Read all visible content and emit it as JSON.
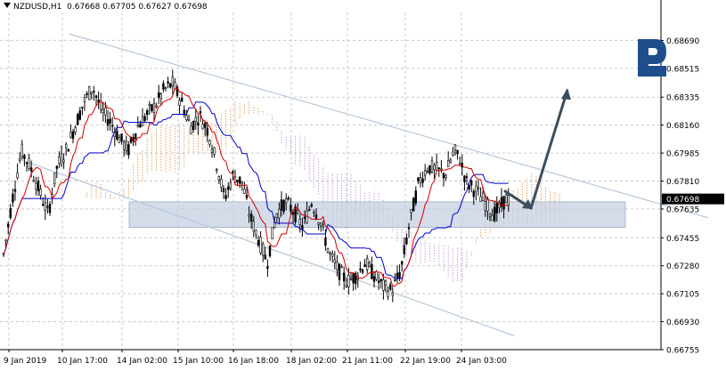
{
  "header": {
    "symbol": "NZDUSD,H1",
    "open": "0.67668",
    "high": "0.67705",
    "low": "0.67627",
    "close": "0.67698"
  },
  "brand": {
    "name": "RoboForex",
    "color": "#1f4e8c"
  },
  "colors": {
    "candle": "#000000",
    "tenkan": "#d40000",
    "kijun": "#0000c8",
    "cloud_bull": "#e8a060",
    "cloud_bear": "#c8a0d8",
    "channel": "#b8c8dc",
    "support_zone": "#c4d0e0",
    "arrow": "#3c4e5c",
    "grid": "#c8c8c8",
    "price_tag_bg": "#000000",
    "price_tag_fg": "#ffffff"
  },
  "current_price": "0.67698",
  "chart_data": {
    "type": "candlestick",
    "indicator": "Ichimoku",
    "ylim": [
      0.66755,
      0.68865
    ],
    "y_ticks": [
      "0.68690",
      "0.68515",
      "0.68335",
      "0.68160",
      "0.67985",
      "0.67810",
      "0.67635",
      "0.67455",
      "0.67280",
      "0.67105",
      "0.66930",
      "0.66755"
    ],
    "x_ticks": [
      "9 Jan 2019",
      "10 Jan 17:00",
      "14 Jan 02:00",
      "15 Jan 10:00",
      "16 Jan 18:00",
      "18 Jan 02:00",
      "21 Jan 11:00",
      "22 Jan 19:00",
      "24 Jan 03:00"
    ],
    "support_zone": [
      0.6752,
      0.6768
    ],
    "forecast": {
      "pullback_target": 0.6764,
      "upside_target": 0.6838
    }
  }
}
